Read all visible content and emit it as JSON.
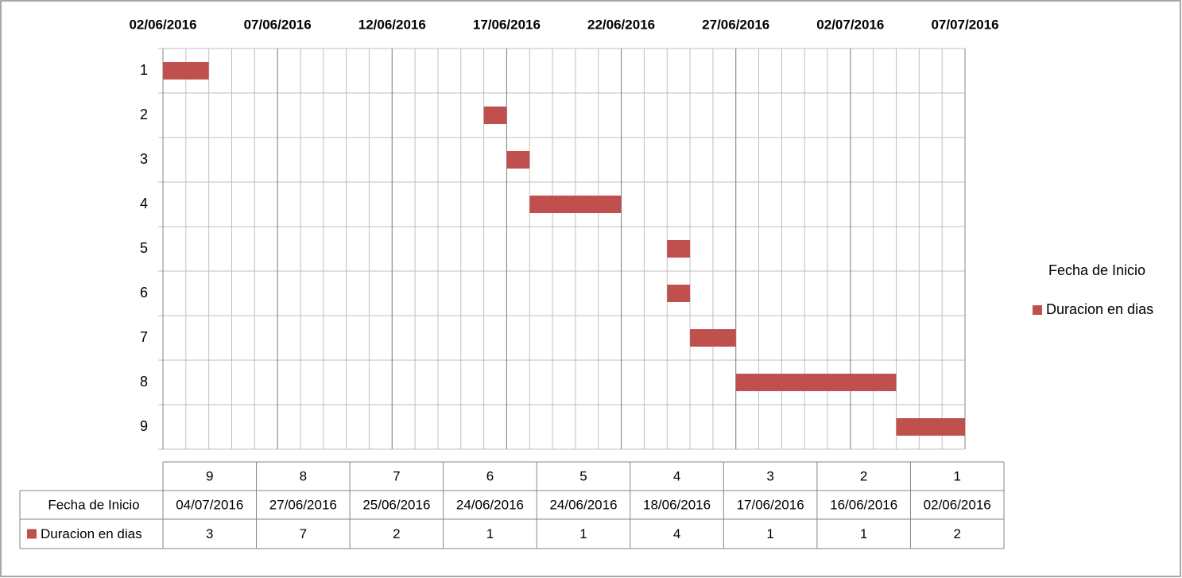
{
  "chart_data": {
    "type": "gantt",
    "categories": [
      "9",
      "8",
      "7",
      "6",
      "5",
      "4",
      "3",
      "2",
      "1"
    ],
    "series": [
      {
        "name": "Fecha de Inicio",
        "values": [
          "04/07/2016",
          "27/06/2016",
          "25/06/2016",
          "24/06/2016",
          "24/06/2016",
          "18/06/2016",
          "17/06/2016",
          "16/06/2016",
          "02/06/2016"
        ]
      },
      {
        "name": "Duracion en dias",
        "color": "#c0504d",
        "values": [
          3,
          7,
          2,
          1,
          1,
          4,
          1,
          1,
          2
        ]
      }
    ],
    "xlim": [
      "02/06/2016",
      "07/07/2016"
    ],
    "xticks": [
      "02/06/2016",
      "07/06/2016",
      "12/06/2016",
      "17/06/2016",
      "22/06/2016",
      "27/06/2016",
      "02/07/2016",
      "07/07/2016"
    ],
    "grid": true,
    "legend": "right",
    "data_table": true
  }
}
